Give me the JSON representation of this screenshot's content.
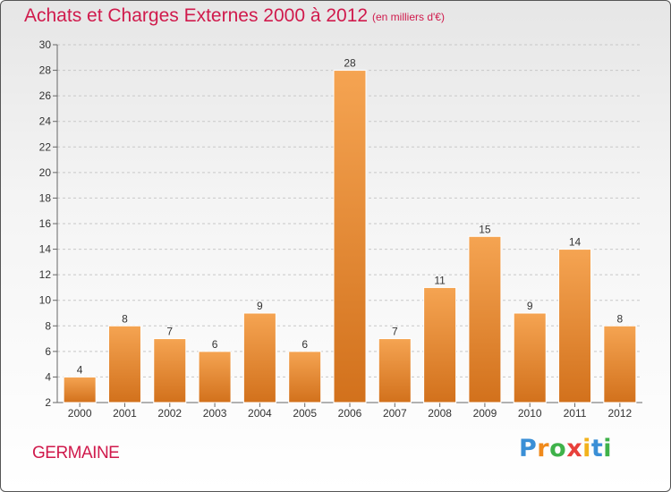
{
  "header": {
    "title": "Achats et Charges Externes 2000 à 2012",
    "subtitle": "(en milliers d'€)"
  },
  "footer": {
    "commune": "GERMAINE",
    "logo_letters": [
      "P",
      "r",
      "o",
      "x",
      "i",
      "t",
      "i"
    ],
    "logo_colors": [
      "#3a8fd6",
      "#f08a1c",
      "#3fb24a",
      "#e8403b",
      "#f2b21c",
      "#3a8fd6",
      "#3fb24a"
    ]
  },
  "colors": {
    "title": "#d01a4c",
    "bar_light": "#f5a452",
    "bar_dark": "#d2711c",
    "grid": "#c8c8c8"
  },
  "chart_data": {
    "type": "bar",
    "title": "Achats et Charges Externes 2000 à 2012",
    "subtitle": "(en milliers d'€)",
    "categories": [
      "2000",
      "2001",
      "2002",
      "2003",
      "2004",
      "2005",
      "2006",
      "2007",
      "2008",
      "2009",
      "2010",
      "2011",
      "2012"
    ],
    "values": [
      4,
      8,
      7,
      6,
      9,
      6,
      28,
      7,
      11,
      15,
      9,
      14,
      8
    ],
    "ylim": [
      2,
      30
    ],
    "yticks": [
      2,
      4,
      6,
      8,
      10,
      12,
      14,
      16,
      18,
      20,
      22,
      24,
      26,
      28,
      30
    ],
    "grid": true,
    "data_labels": true
  }
}
